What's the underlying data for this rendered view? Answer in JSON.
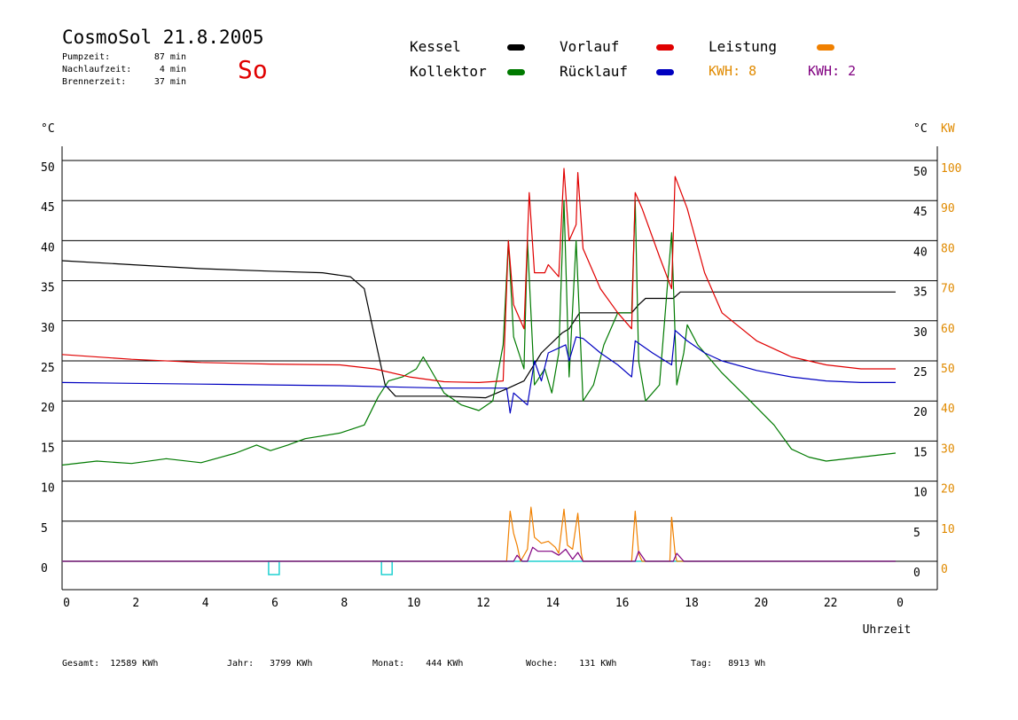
{
  "header": {
    "title": "CosmoSol 21.8.2005",
    "day": "So",
    "stats": [
      {
        "label": "Pumpzeit:",
        "value": "87 min"
      },
      {
        "label": "Nachlaufzeit:",
        "value": "4 min"
      },
      {
        "label": "Brennerzeit:",
        "value": "37 min"
      }
    ]
  },
  "legend": {
    "kessel": "Kessel",
    "kollektor": "Kollektor",
    "vorlauf": "Vorlauf",
    "ruecklauf": "Rücklauf",
    "leistung": "Leistung",
    "kwh_a": "KWH: 8",
    "kwh_b": "KWH: 2"
  },
  "colors": {
    "kessel": "#000000",
    "kollektor": "#007a00",
    "vorlauf": "#e00000",
    "ruecklauf": "#0000c0",
    "leistung": "#f08000",
    "kwh_b": "#800080",
    "pump": "#20d0d0"
  },
  "footer": {
    "gesamt_label": "Gesamt:",
    "gesamt_value": "12589 KWh",
    "jahr_label": "Jahr:",
    "jahr_value": "3799 KWh",
    "monat_label": "Monat:",
    "monat_value": "444 KWh",
    "woche_label": "Woche:",
    "woche_value": "131 KWh",
    "tag_label": "Tag:",
    "tag_value": "8913 Wh"
  },
  "chart_data": {
    "type": "line",
    "left_axis_unit": "°C",
    "right_axis_unit": "°C",
    "right_axis_unit2": "KW",
    "xlabel": "Uhrzeit",
    "x_ticks": [
      "0",
      "2",
      "4",
      "6",
      "8",
      "10",
      "12",
      "14",
      "16",
      "18",
      "20",
      "22",
      "0"
    ],
    "y_ticks": [
      0,
      5,
      10,
      15,
      20,
      25,
      30,
      35,
      40,
      45,
      50
    ],
    "y2_ticks": [
      0,
      10,
      20,
      30,
      40,
      50,
      60,
      70,
      80,
      90,
      100
    ],
    "xlim": [
      0,
      24
    ],
    "ylim": [
      0,
      50
    ],
    "y2lim": [
      0,
      100
    ],
    "grid": true,
    "series": [
      {
        "name": "Kessel",
        "key": "kessel",
        "points": [
          [
            0,
            37.5
          ],
          [
            2,
            37
          ],
          [
            4,
            36.5
          ],
          [
            6,
            36.2
          ],
          [
            7.5,
            36
          ],
          [
            8.3,
            35.5
          ],
          [
            8.7,
            34
          ],
          [
            9.0,
            28
          ],
          [
            9.3,
            22
          ],
          [
            9.6,
            20.6
          ],
          [
            11,
            20.6
          ],
          [
            12.2,
            20.4
          ],
          [
            12.8,
            21.5
          ],
          [
            13.3,
            22.5
          ],
          [
            13.8,
            26
          ],
          [
            14.4,
            28.5
          ],
          [
            14.6,
            29
          ],
          [
            14.9,
            31
          ],
          [
            15.5,
            31
          ],
          [
            16.4,
            31
          ],
          [
            16.6,
            32
          ],
          [
            16.8,
            32.8
          ],
          [
            17.6,
            32.8
          ],
          [
            17.8,
            33.6
          ],
          [
            18.5,
            33.6
          ],
          [
            20,
            33.6
          ],
          [
            24,
            33.6
          ]
        ]
      },
      {
        "name": "Kollektor",
        "key": "kollektor",
        "points": [
          [
            0,
            12
          ],
          [
            1,
            12.5
          ],
          [
            2,
            12.2
          ],
          [
            3,
            12.8
          ],
          [
            4,
            12.3
          ],
          [
            5,
            13.5
          ],
          [
            5.6,
            14.5
          ],
          [
            6,
            13.8
          ],
          [
            6.5,
            14.5
          ],
          [
            7,
            15.3
          ],
          [
            8,
            16
          ],
          [
            8.7,
            17
          ],
          [
            9.1,
            20.5
          ],
          [
            9.4,
            22.5
          ],
          [
            9.8,
            23
          ],
          [
            10.2,
            24
          ],
          [
            10.4,
            25.5
          ],
          [
            10.6,
            24
          ],
          [
            11,
            21
          ],
          [
            11.5,
            19.5
          ],
          [
            12,
            18.8
          ],
          [
            12.4,
            20
          ],
          [
            12.7,
            27
          ],
          [
            12.85,
            40
          ],
          [
            13.0,
            28
          ],
          [
            13.3,
            24
          ],
          [
            13.4,
            40
          ],
          [
            13.6,
            22
          ],
          [
            13.9,
            24
          ],
          [
            14.1,
            21
          ],
          [
            14.3,
            26
          ],
          [
            14.45,
            45
          ],
          [
            14.6,
            23
          ],
          [
            14.8,
            40
          ],
          [
            15,
            20
          ],
          [
            15.3,
            22
          ],
          [
            15.6,
            27
          ],
          [
            16,
            31
          ],
          [
            16.4,
            31
          ],
          [
            16.5,
            45
          ],
          [
            16.6,
            25
          ],
          [
            16.8,
            20
          ],
          [
            17.2,
            22
          ],
          [
            17.55,
            41
          ],
          [
            17.7,
            22
          ],
          [
            17.9,
            26
          ],
          [
            18,
            29.5
          ],
          [
            18.3,
            27
          ],
          [
            19,
            23.5
          ],
          [
            19.7,
            20.5
          ],
          [
            20.5,
            17
          ],
          [
            21,
            14
          ],
          [
            21.5,
            13
          ],
          [
            22,
            12.5
          ],
          [
            23,
            13
          ],
          [
            24,
            13.5
          ]
        ]
      },
      {
        "name": "Vorlauf",
        "key": "vorlauf",
        "points": [
          [
            0,
            25.8
          ],
          [
            2,
            25.2
          ],
          [
            4,
            24.8
          ],
          [
            6,
            24.6
          ],
          [
            8,
            24.5
          ],
          [
            9,
            24
          ],
          [
            10,
            23
          ],
          [
            11,
            22.4
          ],
          [
            12,
            22.3
          ],
          [
            12.7,
            22.5
          ],
          [
            12.85,
            40
          ],
          [
            13.0,
            32
          ],
          [
            13.3,
            29
          ],
          [
            13.45,
            46
          ],
          [
            13.6,
            36
          ],
          [
            13.9,
            36
          ],
          [
            14.0,
            37
          ],
          [
            14.3,
            35.5
          ],
          [
            14.45,
            49
          ],
          [
            14.6,
            40
          ],
          [
            14.8,
            42
          ],
          [
            14.85,
            48.5
          ],
          [
            15,
            39
          ],
          [
            15.5,
            34
          ],
          [
            16,
            31
          ],
          [
            16.4,
            29
          ],
          [
            16.5,
            46
          ],
          [
            16.7,
            44
          ],
          [
            17.2,
            38
          ],
          [
            17.55,
            34
          ],
          [
            17.65,
            48
          ],
          [
            18,
            44
          ],
          [
            18.5,
            36
          ],
          [
            19,
            31
          ],
          [
            20,
            27.5
          ],
          [
            21,
            25.5
          ],
          [
            22,
            24.5
          ],
          [
            23,
            24
          ],
          [
            24,
            24
          ]
        ]
      },
      {
        "name": "Rücklauf",
        "key": "ruecklauf",
        "points": [
          [
            0,
            22.3
          ],
          [
            2,
            22.2
          ],
          [
            4,
            22.1
          ],
          [
            6,
            22
          ],
          [
            8,
            21.9
          ],
          [
            10,
            21.7
          ],
          [
            11,
            21.6
          ],
          [
            12,
            21.6
          ],
          [
            12.8,
            21.6
          ],
          [
            12.9,
            18.5
          ],
          [
            13.0,
            21
          ],
          [
            13.4,
            19.5
          ],
          [
            13.6,
            25
          ],
          [
            13.8,
            22.5
          ],
          [
            14,
            26
          ],
          [
            14.5,
            27
          ],
          [
            14.6,
            25
          ],
          [
            14.8,
            28
          ],
          [
            15,
            27.8
          ],
          [
            15.5,
            26
          ],
          [
            16,
            24.5
          ],
          [
            16.4,
            23
          ],
          [
            16.5,
            27.5
          ],
          [
            17,
            26
          ],
          [
            17.55,
            24.5
          ],
          [
            17.65,
            28.8
          ],
          [
            18,
            27.5
          ],
          [
            18.5,
            26
          ],
          [
            19,
            25
          ],
          [
            20,
            23.8
          ],
          [
            21,
            23
          ],
          [
            22,
            22.5
          ],
          [
            23,
            22.3
          ],
          [
            24,
            22.3
          ]
        ]
      },
      {
        "name": "Leistung",
        "key": "leistung",
        "axis": "right",
        "points": [
          [
            0,
            0
          ],
          [
            12.8,
            0
          ],
          [
            12.9,
            12.5
          ],
          [
            13.0,
            7
          ],
          [
            13.1,
            4
          ],
          [
            13.2,
            0
          ],
          [
            13.4,
            3
          ],
          [
            13.5,
            13.5
          ],
          [
            13.6,
            6
          ],
          [
            13.8,
            4.5
          ],
          [
            14.0,
            5
          ],
          [
            14.2,
            3.5
          ],
          [
            14.3,
            2
          ],
          [
            14.45,
            13
          ],
          [
            14.55,
            4
          ],
          [
            14.7,
            3
          ],
          [
            14.85,
            12
          ],
          [
            14.95,
            2
          ],
          [
            15.0,
            0
          ],
          [
            16.4,
            0
          ],
          [
            16.5,
            12.5
          ],
          [
            16.6,
            2
          ],
          [
            16.7,
            0
          ],
          [
            17.5,
            0
          ],
          [
            17.55,
            11
          ],
          [
            17.65,
            2
          ],
          [
            17.7,
            0
          ],
          [
            24,
            0
          ]
        ]
      },
      {
        "name": "KWH",
        "key": "kwh_b",
        "axis": "right",
        "points": [
          [
            0,
            0
          ],
          [
            13.0,
            0
          ],
          [
            13.1,
            1.5
          ],
          [
            13.25,
            0
          ],
          [
            13.4,
            0
          ],
          [
            13.55,
            3.5
          ],
          [
            13.7,
            2.5
          ],
          [
            14.1,
            2.5
          ],
          [
            14.3,
            1.5
          ],
          [
            14.5,
            3
          ],
          [
            14.7,
            0.5
          ],
          [
            14.85,
            2.2
          ],
          [
            15.0,
            0
          ],
          [
            16.5,
            0
          ],
          [
            16.6,
            2.5
          ],
          [
            16.8,
            0
          ],
          [
            17.6,
            0
          ],
          [
            17.7,
            2
          ],
          [
            17.9,
            0
          ],
          [
            24,
            0
          ]
        ]
      }
    ],
    "pump_markers": [
      6.1,
      9.35
    ]
  }
}
